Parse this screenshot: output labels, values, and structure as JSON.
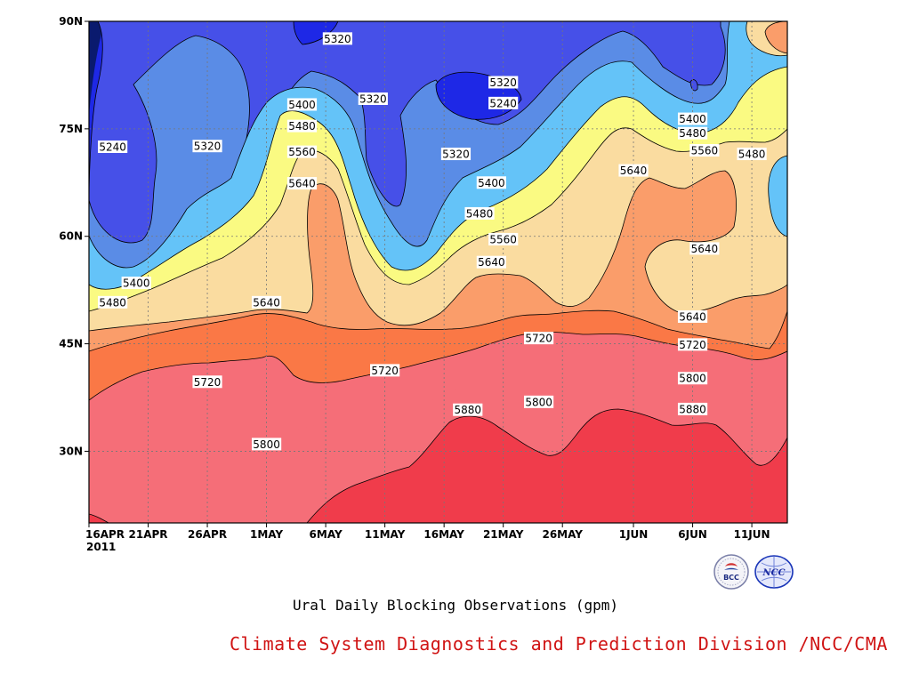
{
  "chart_data": {
    "type": "contour",
    "title": "Ural Daily Blocking Observations (gpm)",
    "x_ticks": [
      "16APR",
      "21APR",
      "26APR",
      "1MAY",
      "6MAY",
      "11MAY",
      "16MAY",
      "21MAY",
      "26MAY",
      "1JUN",
      "6JUN",
      "11JUN"
    ],
    "x_year": "2011",
    "y_ticks": [
      "30N",
      "45N",
      "60N",
      "75N",
      "90N"
    ],
    "xlim": [
      "2011-04-16",
      "2011-06-14"
    ],
    "ylim_lat": [
      20,
      90
    ],
    "grid": "dotted",
    "contour_levels_gpm": [
      5240,
      5320,
      5400,
      5480,
      5560,
      5640,
      5720,
      5800,
      5880
    ],
    "level_colors": [
      "#0a1a6e",
      "#1e28e6",
      "#4650e8",
      "#5a8ce6",
      "#64c3f8",
      "#fafa82",
      "#fadca0",
      "#fa9d6a",
      "#fa7846",
      "#f56e78",
      "#f03c4b"
    ],
    "contour_labels": [
      {
        "text": "5240",
        "date": "2011-04-18",
        "lat": 72.5
      },
      {
        "text": "5320",
        "date": "2011-04-26",
        "lat": 72.6
      },
      {
        "text": "5320",
        "date": "2011-05-07",
        "lat": 87.6
      },
      {
        "text": "5320",
        "date": "2011-05-10",
        "lat": 79.2
      },
      {
        "text": "5320",
        "date": "2011-05-21",
        "lat": 81.5
      },
      {
        "text": "5240",
        "date": "2011-05-21",
        "lat": 78.6
      },
      {
        "text": "5320",
        "date": "2011-05-17",
        "lat": 71.5
      },
      {
        "text": "5400",
        "date": "2011-05-04",
        "lat": 78.4
      },
      {
        "text": "5400",
        "date": "2011-05-20",
        "lat": 67.5
      },
      {
        "text": "5400",
        "date": "2011-06-06",
        "lat": 76.4
      },
      {
        "text": "5400",
        "date": "2011-04-20",
        "lat": 53.5
      },
      {
        "text": "5480",
        "date": "2011-05-04",
        "lat": 75.4
      },
      {
        "text": "5480",
        "date": "2011-05-19",
        "lat": 63.2
      },
      {
        "text": "5480",
        "date": "2011-06-06",
        "lat": 74.4
      },
      {
        "text": "5480",
        "date": "2011-06-11",
        "lat": 71.5
      },
      {
        "text": "5480",
        "date": "2011-04-18",
        "lat": 50.8
      },
      {
        "text": "5560",
        "date": "2011-05-04",
        "lat": 71.8
      },
      {
        "text": "5560",
        "date": "2011-05-21",
        "lat": 59.6
      },
      {
        "text": "5560",
        "date": "2011-06-07",
        "lat": 72.0
      },
      {
        "text": "5640",
        "date": "2011-05-04",
        "lat": 67.4
      },
      {
        "text": "5640",
        "date": "2011-05-01",
        "lat": 50.8
      },
      {
        "text": "5640",
        "date": "2011-05-20",
        "lat": 56.4
      },
      {
        "text": "5640",
        "date": "2011-06-01",
        "lat": 69.2
      },
      {
        "text": "5640",
        "date": "2011-06-07",
        "lat": 58.3
      },
      {
        "text": "5640",
        "date": "2011-06-06",
        "lat": 48.8
      },
      {
        "text": "5720",
        "date": "2011-04-26",
        "lat": 39.7
      },
      {
        "text": "5720",
        "date": "2011-05-11",
        "lat": 41.3
      },
      {
        "text": "5720",
        "date": "2011-05-24",
        "lat": 45.8
      },
      {
        "text": "5720",
        "date": "2011-06-06",
        "lat": 44.9
      },
      {
        "text": "5800",
        "date": "2011-05-01",
        "lat": 31.0
      },
      {
        "text": "5800",
        "date": "2011-05-24",
        "lat": 36.9
      },
      {
        "text": "5800",
        "date": "2011-06-06",
        "lat": 40.2
      },
      {
        "text": "5880",
        "date": "2011-05-18",
        "lat": 35.8
      },
      {
        "text": "5880",
        "date": "2011-06-06",
        "lat": 35.9
      }
    ]
  },
  "footer": {
    "title": "Ural Daily Blocking Observations (gpm)",
    "credit": "Climate System Diagnostics and Prediction Division /NCC/CMA"
  },
  "logos": [
    {
      "name": "bcc-logo",
      "text": "BCC"
    },
    {
      "name": "ncc-logo",
      "text": "NCC"
    }
  ]
}
